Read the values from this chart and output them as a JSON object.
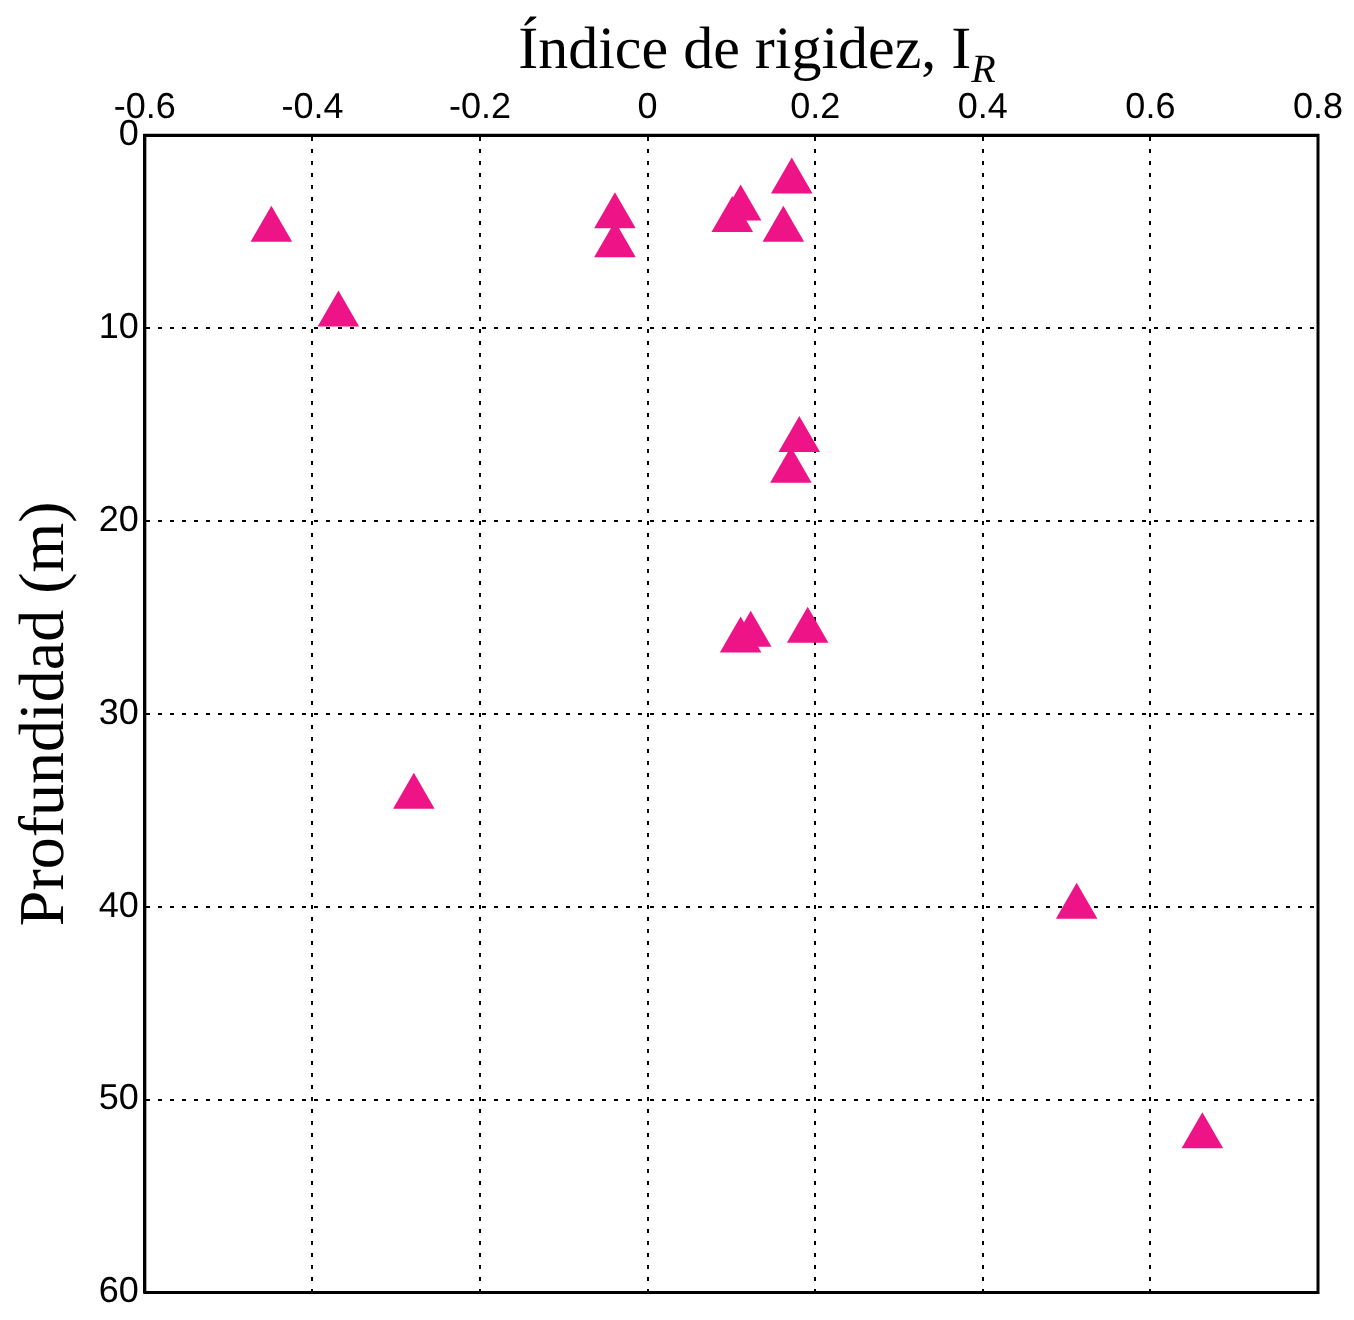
{
  "chart_data": {
    "type": "scatter",
    "xlabel": "Índice de rigidez, I$_{R}$",
    "ylabel": "Profundidad (m)",
    "x": [
      -0.449,
      -0.369,
      -0.039,
      -0.039,
      0.111,
      0.101,
      0.172,
      0.162,
      0.181,
      0.171,
      0.111,
      0.123,
      0.191,
      -0.279,
      0.512,
      0.662
    ],
    "values": [
      4.9,
      9.3,
      4.2,
      5.7,
      3.8,
      4.4,
      2.4,
      4.9,
      15.8,
      17.4,
      26.2,
      25.9,
      25.7,
      34.3,
      40.0,
      51.9
    ],
    "color": "#ee1487",
    "marker": "triangle",
    "xlim": [
      -0.6,
      0.8
    ],
    "xticks": [
      -0.6,
      -0.4,
      -0.2,
      0,
      0.2,
      0.4,
      0.6,
      0.8
    ],
    "ylim": [
      60,
      0
    ],
    "yticks": [
      0,
      10,
      20,
      30,
      40,
      50,
      60
    ],
    "grid": true,
    "legend": false
  }
}
